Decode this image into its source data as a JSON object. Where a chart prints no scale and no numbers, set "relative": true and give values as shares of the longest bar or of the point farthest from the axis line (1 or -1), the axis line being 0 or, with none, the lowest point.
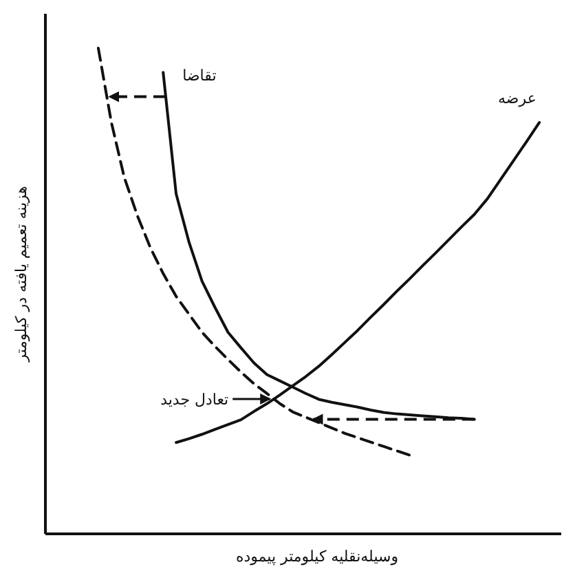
{
  "chart_data": {
    "type": "line",
    "relative": true,
    "xlabel": "وسیله‌نقلیه کیلومتر پیموده",
    "ylabel": "هزینه تعمیم یافته در کیلومتر",
    "categories": [
      null,
      null,
      null,
      null,
      null,
      null,
      null,
      null,
      null,
      null,
      null,
      null,
      null,
      null,
      null,
      null,
      null,
      null,
      null,
      null,
      null,
      null,
      null,
      null,
      null,
      null,
      null,
      null,
      null,
      null,
      null,
      null,
      null,
      null,
      null
    ],
    "series": [
      {
        "name": "تقاضا",
        "color": "#111111",
        "line_style": "solid",
        "values": [
          null,
          null,
          null,
          null,
          null,
          0.95,
          0.7,
          0.6,
          0.52,
          0.466,
          0.415,
          0.383,
          0.352,
          0.328,
          0.315,
          0.302,
          0.289,
          0.277,
          0.271,
          0.266,
          0.261,
          0.255,
          0.25,
          0.247,
          0.245,
          0.243,
          0.241,
          0.239,
          0.238,
          0.236,
          null,
          null,
          null,
          null,
          null
        ]
      },
      {
        "color": "#111111",
        "line_style": "dashed",
        "values": [
          1.0,
          0.848,
          0.734,
          0.656,
          0.59,
          0.536,
          0.489,
          0.452,
          0.415,
          0.386,
          0.359,
          0.333,
          0.309,
          0.289,
          0.268,
          0.251,
          0.24,
          0.229,
          0.218,
          0.207,
          0.198,
          0.189,
          0.18,
          0.171,
          0.162,
          null,
          null,
          null,
          null,
          null,
          null,
          null,
          null,
          null,
          null
        ]
      },
      {
        "name": "عرضه",
        "color": "#111111",
        "line_style": "solid",
        "values": [
          null,
          null,
          null,
          null,
          null,
          null,
          0.188,
          0.196,
          0.205,
          0.215,
          0.225,
          0.235,
          0.252,
          0.268,
          0.286,
          0.305,
          0.324,
          0.345,
          0.369,
          0.394,
          0.419,
          0.446,
          0.472,
          0.499,
          0.525,
          0.552,
          0.578,
          0.605,
          0.632,
          0.658,
          0.69,
          0.729,
          0.768,
          0.807,
          0.847
        ]
      }
    ],
    "annotations": [
      "تعادل جدید"
    ]
  }
}
